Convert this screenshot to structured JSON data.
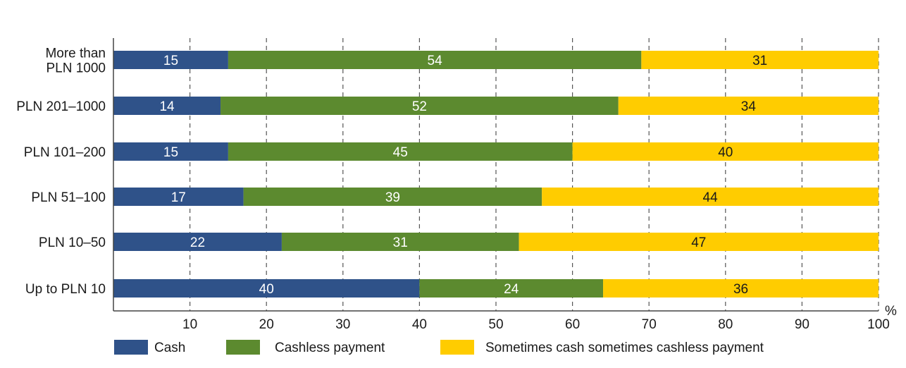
{
  "chart_data": {
    "type": "bar",
    "orientation": "horizontal",
    "stacked": true,
    "categories": [
      "More than PLN 1000",
      "PLN 201–1000",
      "PLN 101–200",
      "PLN 51–100",
      "PLN 10–50",
      "Up to PLN 10"
    ],
    "category_lines": [
      [
        "More than",
        "PLN 1000"
      ],
      [
        "PLN 201–1000"
      ],
      [
        "PLN 101–200"
      ],
      [
        "PLN 51–100"
      ],
      [
        "PLN 10–50"
      ],
      [
        "Up to PLN 10"
      ]
    ],
    "series": [
      {
        "name": "Cash",
        "color": "#2f5289",
        "label_color": "#ffffff",
        "values": [
          15,
          14,
          15,
          17,
          22,
          40
        ]
      },
      {
        "name": "Cashless payment",
        "color": "#5c8a2f",
        "label_color": "#ffffff",
        "values": [
          54,
          52,
          45,
          39,
          31,
          24
        ]
      },
      {
        "name": "Sometimes cash sometimes cashless payment",
        "color": "#ffcc00",
        "label_color": "#1a1a1a",
        "values": [
          31,
          34,
          40,
          44,
          47,
          36
        ]
      }
    ],
    "x_ticks": [
      "10",
      "20",
      "30",
      "40",
      "50",
      "60",
      "70",
      "80",
      "90",
      "100"
    ],
    "xlim": [
      0,
      100
    ],
    "x_unit": "%",
    "grid": "vertical dashed",
    "legend_position": "bottom"
  }
}
